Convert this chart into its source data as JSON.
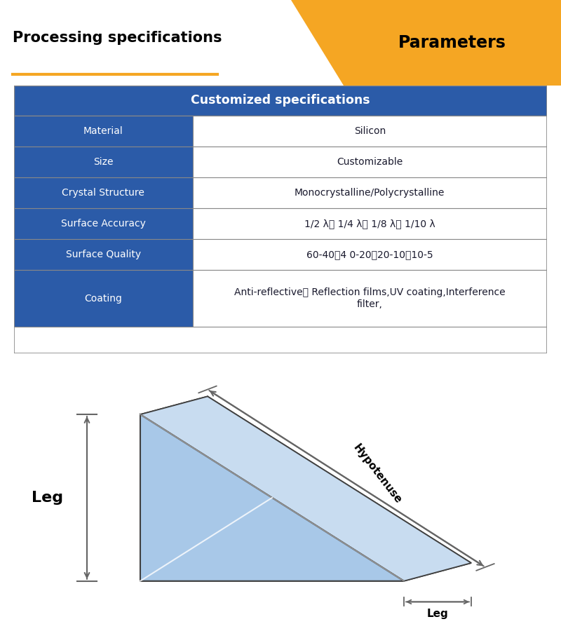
{
  "title_left": "Processing specifications",
  "title_right": "Parameters",
  "title_right_bg": "#F5A623",
  "orange_line_color": "#F5A623",
  "table_header_text": "Customized specifications",
  "table_header_bg": "#2B5BA8",
  "table_header_fg": "#FFFFFF",
  "table_left_bg": "#2B5BA8",
  "table_left_fg": "#FFFFFF",
  "table_right_bg": "#FFFFFF",
  "table_right_fg": "#1a1a2e",
  "table_border": "#AAAAAA",
  "rows": [
    [
      "Material",
      "Silicon"
    ],
    [
      "Size",
      "Customizable"
    ],
    [
      "Crystal Structure",
      "Monocrystalline/Polycrystalline"
    ],
    [
      "Surface Accuracy",
      "1/2 λ、 1/4 λ、 1/8 λ、 1/10 λ"
    ],
    [
      "Surface Quality",
      "60-40、4 0-20、20-10、10-5"
    ],
    [
      "Coating",
      "Anti-reflective、 Reflection films,UV coating,Interference\nfilter,"
    ]
  ],
  "prism_left_face": "#A8C8E8",
  "prism_hyp_face": "#C8DCF0",
  "prism_bottom_face": "#B8D0E8",
  "prism_back_face": "#D8EAF8",
  "prism_inner_light": "#E8F2FC",
  "prism_edge_color": "#404040",
  "annotation_color": "#666666",
  "bg_color": "#FFFFFF"
}
